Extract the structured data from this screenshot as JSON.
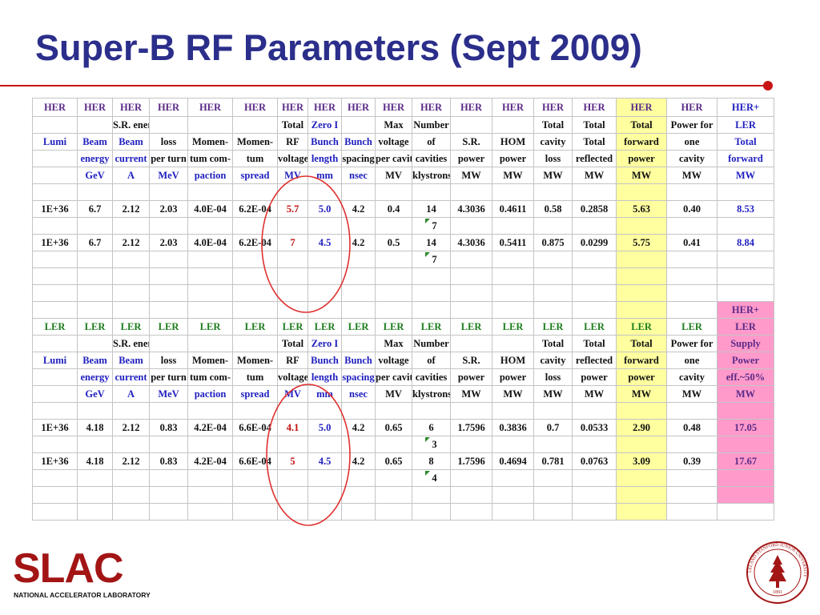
{
  "title": "Super-B RF Parameters (Sept 2009)",
  "logo": {
    "word": "SLAC",
    "subtitle": "NATIONAL ACCELERATOR LABORATORY"
  },
  "seal": {
    "text": "LELAND STANFORD JUNIOR UNIVERSITY",
    "year": "1891"
  },
  "table": {
    "her_tags": [
      "HER",
      "HER",
      "HER",
      "HER",
      "HER",
      "HER",
      "HER",
      "HER",
      "HER",
      "HER",
      "HER",
      "HER",
      "HER",
      "HER",
      "HER",
      "HER",
      "HER",
      "HER+"
    ],
    "her_h1": [
      "",
      "",
      "S.R. energy",
      "",
      "",
      "",
      "Total",
      "Zero I",
      "",
      "Max",
      "Number",
      "",
      "",
      "Total",
      "Total",
      "Total",
      "Power for",
      "LER"
    ],
    "her_h2": [
      "Lumi",
      "Beam",
      "Beam",
      "loss",
      "Momen-",
      "Momen-",
      "RF",
      "Bunch",
      "Bunch",
      "voltage",
      "of",
      "S.R.",
      "HOM",
      "cavity",
      "Total",
      "forward",
      "one",
      "Total"
    ],
    "her_h3": [
      "",
      "energy",
      "current",
      "per turn",
      "tum com-",
      "tum",
      "voltage",
      "length",
      "spacing",
      "per cavity",
      "cavities",
      "power",
      "power",
      "loss",
      "reflected",
      "power",
      "cavity",
      "forward"
    ],
    "her_h4": [
      "",
      "GeV",
      "A",
      "MeV",
      "paction",
      "spread",
      "MV",
      "mm",
      "nsec",
      "MV",
      "klystrons",
      "MW",
      "MW",
      "MW",
      "MW",
      "MW",
      "MW",
      "MW"
    ],
    "her_r1": [
      "1E+36",
      "6.7",
      "2.12",
      "2.03",
      "4.0E-04",
      "6.2E-04",
      "5.7",
      "5.0",
      "4.2",
      "0.4",
      "14",
      "4.3036",
      "0.4611",
      "0.58",
      "0.2858",
      "5.63",
      "0.40",
      "8.53"
    ],
    "her_r1b": "7",
    "her_r2": [
      "1E+36",
      "6.7",
      "2.12",
      "2.03",
      "4.0E-04",
      "6.2E-04",
      "7",
      "4.5",
      "4.2",
      "0.5",
      "14",
      "4.3036",
      "0.5411",
      "0.875",
      "0.0299",
      "5.75",
      "0.41",
      "8.84"
    ],
    "her_r2b": "7",
    "pink_top": [
      "HER+",
      "LER"
    ],
    "ler_tags": [
      "LER",
      "LER",
      "LER",
      "LER",
      "LER",
      "LER",
      "LER",
      "LER",
      "LER",
      "LER",
      "LER",
      "LER",
      "LER",
      "LER",
      "LER",
      "LER",
      "LER"
    ],
    "ler_h1": [
      "",
      "",
      "S.R. energy",
      "",
      "",
      "",
      "Total",
      "Zero I",
      "",
      "Max",
      "Number",
      "",
      "",
      "Total",
      "Total",
      "Total",
      "Power for"
    ],
    "ler_h2": [
      "Lumi",
      "Beam",
      "Beam",
      "loss",
      "Momen-",
      "Momen-",
      "RF",
      "Bunch",
      "Bunch",
      "voltage",
      "of",
      "S.R.",
      "HOM",
      "cavity",
      "reflected",
      "forward",
      "one"
    ],
    "ler_h3": [
      "",
      "energy",
      "current",
      "per turn",
      "tum com-",
      "tum",
      "voltage",
      "length",
      "spacing",
      "per cavity",
      "cavities",
      "power",
      "power",
      "loss",
      "power",
      "power",
      "cavity"
    ],
    "ler_h4": [
      "",
      "GeV",
      "A",
      "MeV",
      "paction",
      "spread",
      "MV",
      "mm",
      "nsec",
      "MV",
      "klystrons",
      "MW",
      "MW",
      "MW",
      "MW",
      "MW",
      "MW"
    ],
    "pink_ler": [
      "Supply",
      "Power",
      "eff.~50%",
      "MW"
    ],
    "ler_r1": [
      "1E+36",
      "4.18",
      "2.12",
      "0.83",
      "4.2E-04",
      "6.6E-04",
      "4.1",
      "5.0",
      "4.2",
      "0.65",
      "6",
      "1.7596",
      "0.3836",
      "0.7",
      "0.0533",
      "2.90",
      "0.48",
      "17.05"
    ],
    "ler_r1b": "3",
    "ler_r2": [
      "1E+36",
      "4.18",
      "2.12",
      "0.83",
      "4.2E-04",
      "6.6E-04",
      "5",
      "4.5",
      "4.2",
      "0.65",
      "8",
      "1.7596",
      "0.4694",
      "0.781",
      "0.0763",
      "3.09",
      "0.39",
      "17.67"
    ],
    "ler_r2b": "4"
  },
  "colors": {
    "title": "#2b2e8a",
    "her_header": "#5a2a87",
    "ler_header": "#1d7d1d",
    "link_blue": "#2020c0",
    "highlight_red": "#c01010",
    "forward_power_column": "#ffffa0",
    "total_supply_column": "#ff9acb",
    "circle": "#e03030"
  }
}
